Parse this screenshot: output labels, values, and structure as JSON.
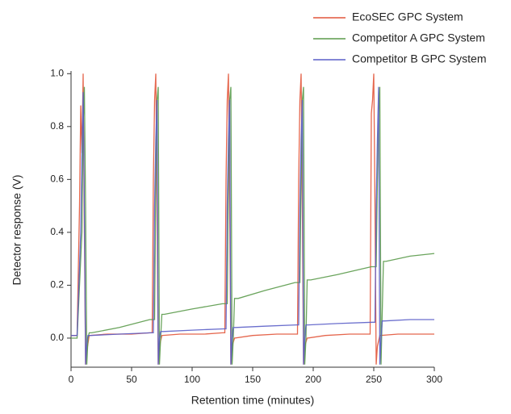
{
  "chart_data": {
    "type": "line",
    "xlabel": "Retention time (minutes)",
    "ylabel": "Detector response (V)",
    "xlim": [
      0,
      300
    ],
    "ylim": [
      -0.11,
      1.01
    ],
    "xticks": [
      0,
      50,
      100,
      150,
      200,
      250,
      300
    ],
    "yticks": [
      {
        "value": 0,
        "label": "0.0"
      },
      0.2,
      0.4,
      0.6,
      0.8,
      {
        "value": 1,
        "label": "1.0"
      }
    ],
    "legend": "upper-right",
    "series": [
      {
        "name": "EcoSEC GPC System",
        "color": "#e2553a",
        "x": [
          0,
          5,
          7,
          8,
          9,
          10,
          11,
          12,
          13,
          15,
          30,
          50,
          65,
          67,
          68,
          69,
          70,
          71,
          72,
          73,
          75,
          90,
          110,
          125,
          127,
          128,
          129,
          130,
          131,
          132,
          133,
          135,
          150,
          170,
          185,
          187,
          188,
          189,
          190,
          191,
          192,
          193,
          195,
          210,
          230,
          245,
          247,
          248,
          249,
          250,
          251,
          252,
          253,
          255,
          270,
          290,
          300
        ],
        "values": [
          0.01,
          0.01,
          0.5,
          0.88,
          0.7,
          1.0,
          0.4,
          -0.1,
          -0.05,
          0.01,
          0.015,
          0.015,
          0.02,
          0.02,
          0.6,
          0.9,
          1.0,
          0.5,
          -0.1,
          -0.03,
          0.01,
          0.015,
          0.015,
          0.02,
          0.02,
          0.6,
          0.9,
          1.0,
          0.5,
          -0.1,
          -0.03,
          0.0,
          0.01,
          0.015,
          0.015,
          0.015,
          0.6,
          0.9,
          1.0,
          0.5,
          -0.1,
          -0.03,
          0.0,
          0.01,
          0.015,
          0.015,
          0.015,
          0.85,
          0.9,
          1.0,
          0.5,
          -0.1,
          -0.03,
          0.01,
          0.015,
          0.015,
          0.015
        ]
      },
      {
        "name": "Competitor A GPC System",
        "color": "#5a9a4a",
        "x": [
          0,
          5,
          9,
          10,
          11,
          12,
          13,
          14,
          15,
          17,
          40,
          65,
          69,
          70,
          71,
          72,
          73,
          74,
          75,
          77,
          100,
          125,
          129,
          130,
          131,
          132,
          133,
          134,
          135,
          138,
          160,
          185,
          189,
          190,
          191,
          192,
          193,
          194,
          195,
          198,
          220,
          248,
          252,
          253,
          254,
          255,
          256,
          257,
          258,
          260,
          280,
          300
        ],
        "values": [
          0.0,
          0.0,
          0.4,
          0.8,
          0.95,
          0.5,
          -0.1,
          0.0,
          0.02,
          0.02,
          0.04,
          0.07,
          0.07,
          0.6,
          0.9,
          0.95,
          -0.1,
          0.0,
          0.09,
          0.09,
          0.11,
          0.13,
          0.13,
          0.6,
          0.9,
          0.95,
          -0.1,
          0.0,
          0.15,
          0.15,
          0.18,
          0.21,
          0.21,
          0.6,
          0.9,
          0.95,
          -0.1,
          0.0,
          0.22,
          0.22,
          0.24,
          0.27,
          0.27,
          0.6,
          0.85,
          0.95,
          -0.1,
          0.1,
          0.29,
          0.29,
          0.31,
          0.32
        ]
      },
      {
        "name": "Competitor B GPC System",
        "color": "#5a5ec8",
        "x": [
          0,
          5,
          8,
          9,
          10,
          11,
          12,
          13,
          14,
          16,
          40,
          66,
          68,
          69,
          70,
          71,
          72,
          73,
          74,
          76,
          100,
          126,
          128,
          129,
          130,
          131,
          132,
          133,
          134,
          136,
          160,
          186,
          188,
          189,
          190,
          191,
          192,
          193,
          194,
          196,
          220,
          249,
          251,
          252,
          253,
          254,
          255,
          256,
          257,
          259,
          280,
          300
        ],
        "values": [
          0.01,
          0.01,
          0.4,
          0.7,
          0.93,
          0.5,
          -0.1,
          -0.02,
          0.01,
          0.01,
          0.015,
          0.02,
          0.02,
          0.5,
          0.75,
          0.9,
          -0.1,
          0.0,
          0.025,
          0.025,
          0.03,
          0.035,
          0.035,
          0.5,
          0.75,
          0.9,
          -0.1,
          0.0,
          0.04,
          0.04,
          0.045,
          0.05,
          0.05,
          0.5,
          0.75,
          0.9,
          -0.1,
          0.0,
          0.05,
          0.05,
          0.055,
          0.06,
          0.06,
          0.5,
          0.75,
          0.95,
          -0.1,
          0.0,
          0.065,
          0.065,
          0.07,
          0.07
        ]
      }
    ]
  }
}
